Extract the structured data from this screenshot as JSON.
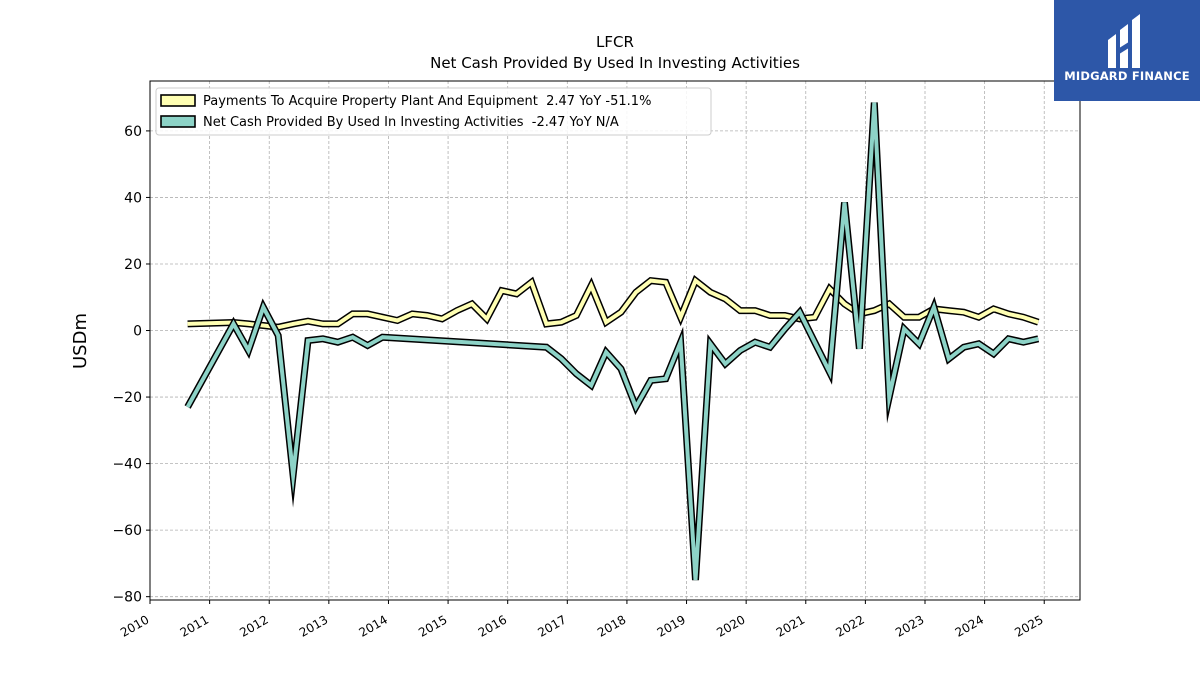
{
  "chart_data": {
    "type": "line",
    "title": "LFCR",
    "subtitle": "Net Cash Provided By Used In Investing Activities",
    "ylabel": "USDm",
    "xlabel": "",
    "xlim": [
      2010,
      2025.6
    ],
    "ylim": [
      -81,
      75
    ],
    "yticks": [
      60,
      40,
      20,
      0,
      -20,
      -40,
      -60,
      -80
    ],
    "ytick_labels": [
      "60",
      "40",
      "20",
      "0",
      "−20",
      "−40",
      "−60",
      "−80"
    ],
    "xticks": [
      "2010",
      "2011",
      "2012",
      "2013",
      "2014",
      "2015",
      "2016",
      "2017",
      "2018",
      "2019",
      "2020",
      "2021",
      "2022",
      "2023",
      "2024",
      "2025"
    ],
    "grid": true,
    "legend_position": "top-left",
    "series": [
      {
        "name": "Payments To Acquire Property Plant And Equipment  2.47 YoY -51.1%",
        "color": "#ffffb3",
        "x": [
          2010.63,
          2011.4,
          2011.65,
          2011.9,
          2012.15,
          2012.4,
          2012.65,
          2012.9,
          2013.15,
          2013.4,
          2013.65,
          2013.9,
          2014.15,
          2014.4,
          2014.65,
          2014.9,
          2015.15,
          2015.4,
          2015.65,
          2015.9,
          2016.15,
          2016.4,
          2016.65,
          2016.9,
          2017.15,
          2017.4,
          2017.65,
          2017.9,
          2018.15,
          2018.4,
          2018.65,
          2018.9,
          2019.15,
          2019.4,
          2019.65,
          2019.9,
          2020.15,
          2020.4,
          2020.65,
          2020.9,
          2021.15,
          2021.4,
          2021.65,
          2021.9,
          2022.15,
          2022.4,
          2022.65,
          2022.9,
          2023.15,
          2023.4,
          2023.65,
          2023.9,
          2024.15,
          2024.4,
          2024.65,
          2024.9
        ],
        "values": [
          2.0,
          2.4,
          2.0,
          1.5,
          1.0,
          2.0,
          2.8,
          2.0,
          2.0,
          5.0,
          5.0,
          4.0,
          3.0,
          5.0,
          4.5,
          3.5,
          6.0,
          8.0,
          3.5,
          12.0,
          11.0,
          14.5,
          2.0,
          2.5,
          4.5,
          13.5,
          2.5,
          5.5,
          11.5,
          15.0,
          14.5,
          4.0,
          15.0,
          11.5,
          9.5,
          6.0,
          6.0,
          4.5,
          4.5,
          3.5,
          4.0,
          12.5,
          8.0,
          5.0,
          6.0,
          8.0,
          4.0,
          4.0,
          6.5,
          6.0,
          5.5,
          4.0,
          6.5,
          5.0,
          4.0,
          2.5
        ]
      },
      {
        "name": "Net Cash Provided By Used In Investing Activities  -2.47 YoY N/A",
        "color": "#8dd3c7",
        "x": [
          2010.63,
          2011.4,
          2011.65,
          2011.9,
          2012.15,
          2012.4,
          2012.65,
          2012.9,
          2013.15,
          2013.4,
          2013.65,
          2013.9,
          2016.65,
          2016.9,
          2017.15,
          2017.4,
          2017.65,
          2017.9,
          2018.15,
          2018.4,
          2018.65,
          2018.9,
          2019.15,
          2019.4,
          2019.65,
          2019.9,
          2020.15,
          2020.4,
          2020.65,
          2020.9,
          2021.15,
          2021.4,
          2021.65,
          2021.9,
          2022.15,
          2022.4,
          2022.65,
          2022.9,
          2023.15,
          2023.4,
          2023.65,
          2023.9,
          2024.15,
          2024.4,
          2024.65,
          2024.9
        ],
        "values": [
          -23.0,
          2.0,
          -6.0,
          7.0,
          -1.5,
          -43.5,
          -3.0,
          -2.5,
          -3.5,
          -2.0,
          -4.5,
          -2.0,
          -5.0,
          -8.5,
          -13.0,
          -16.5,
          -6.5,
          -11.5,
          -23.0,
          -15.0,
          -14.5,
          -3.5,
          -75.0,
          -4.0,
          -10.0,
          -6.0,
          -3.5,
          -5.0,
          0.5,
          5.5,
          -3.5,
          -12.5,
          38.5,
          -5.5,
          68.5,
          -20.0,
          0.5,
          -4.0,
          7.0,
          -8.5,
          -5.0,
          -4.0,
          -7.0,
          -2.5,
          -3.5,
          -2.5
        ]
      }
    ]
  },
  "brand": {
    "name": "MIDGARD FINANCE",
    "color": "#2d57a8"
  }
}
